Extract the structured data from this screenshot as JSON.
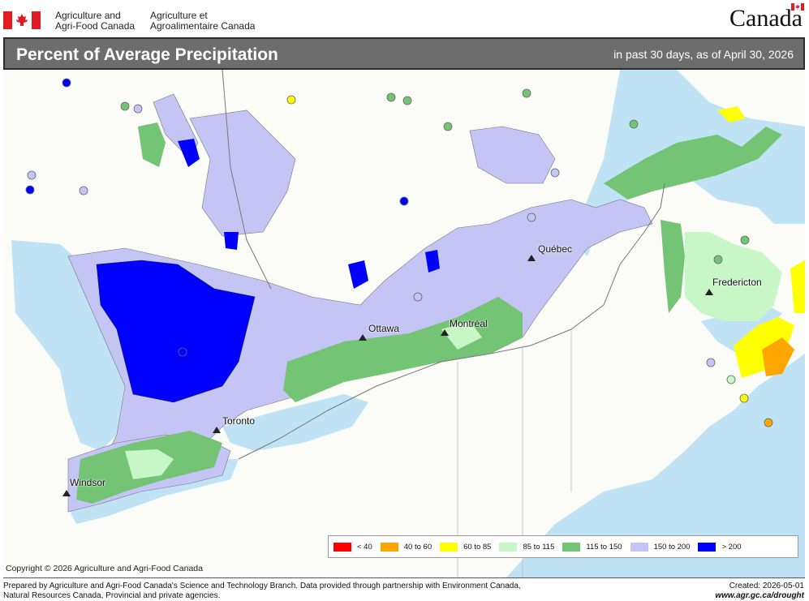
{
  "header": {
    "department_en": [
      "Agriculture and",
      "Agri-Food Canada"
    ],
    "department_fr": [
      "Agriculture et",
      "Agroalimentaire Canada"
    ],
    "wordmark": "Canada"
  },
  "titlebar": {
    "title": "Percent of Average Precipitation",
    "subtitle": "in past 30 days, as of April 30, 2026"
  },
  "map": {
    "cities": [
      {
        "name": "Québec"
      },
      {
        "name": "Ottawa"
      },
      {
        "name": "Montréal"
      },
      {
        "name": "Fredericton"
      },
      {
        "name": "Toronto"
      },
      {
        "name": "Windsor"
      }
    ],
    "colors": {
      "water": "#bfe3f4",
      "land_us": "#fbfbf7",
      "lt40": "#ff0000",
      "40to60": "#ffa500",
      "60to85": "#ffff00",
      "85to115": "#c7f7c7",
      "115to150": "#74c476",
      "150to200": "#c4c4f5",
      "gt200": "#0000ff"
    }
  },
  "legend": {
    "items": [
      {
        "label": "< 40",
        "color": "#ff0000"
      },
      {
        "label": "40 to 60",
        "color": "#ffa500"
      },
      {
        "label": "60 to 85",
        "color": "#ffff00"
      },
      {
        "label": "85 to 115",
        "color": "#c7f7c7"
      },
      {
        "label": "115 to 150",
        "color": "#74c476"
      },
      {
        "label": "150 to 200",
        "color": "#c4c4f5"
      },
      {
        "label": "> 200",
        "color": "#0000ff"
      }
    ]
  },
  "copyright": "Copyright © 2026 Agriculture and Agri-Food Canada",
  "footer": {
    "prepared_line1": "Prepared by Agriculture and Agri-Food Canada's Science and Technology Branch. Data provided through partnership with Environment Canada,",
    "prepared_line2": "Natural Resources Canada, Provincial and private agencies.",
    "created": "Created: 2026-05-01",
    "url": "www.agr.gc.ca/drought"
  }
}
